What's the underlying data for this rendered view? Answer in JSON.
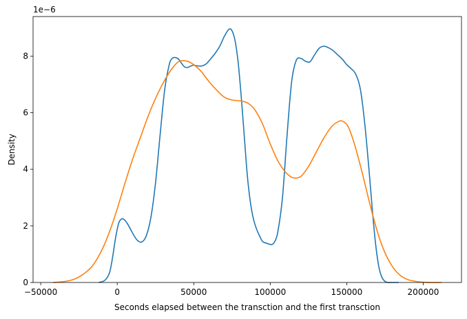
{
  "chart_data": {
    "type": "line",
    "title": "",
    "xlabel": "Seconds elapsed between the transction and the first transction",
    "ylabel": "Density",
    "y_offset_label": "1e−6",
    "xlim": [
      -55000,
      225000
    ],
    "ylim": [
      0,
      9.4
    ],
    "y_unit_scale": "1e-6",
    "x_ticks": [
      -50000,
      0,
      50000,
      100000,
      150000,
      200000
    ],
    "x_tick_labels": [
      "−50000",
      "0",
      "50000",
      "100000",
      "150000",
      "200000"
    ],
    "y_ticks": [
      0,
      2,
      4,
      6,
      8
    ],
    "y_tick_labels": [
      "0",
      "2",
      "4",
      "6",
      "8"
    ],
    "grid": false,
    "legend": "none",
    "series": [
      {
        "color": "#1f77b4",
        "x": [
          -12000,
          -8000,
          -5000,
          -3000,
          -1000,
          1000,
          3000,
          5000,
          7000,
          10000,
          13000,
          16000,
          19000,
          22000,
          25000,
          28000,
          31000,
          34000,
          36000,
          38000,
          40000,
          42000,
          44000,
          46000,
          48000,
          50000,
          52000,
          55000,
          58000,
          61000,
          64000,
          67000,
          70000,
          73000,
          75000,
          77000,
          79000,
          81000,
          83000,
          85000,
          87000,
          89000,
          91000,
          93000,
          95000,
          98000,
          101000,
          103000,
          105000,
          108000,
          111000,
          114000,
          117000,
          120000,
          123000,
          126000,
          129000,
          132000,
          135000,
          138000,
          141000,
          144000,
          147000,
          150000,
          153000,
          156000,
          159000,
          162000,
          165000,
          167000,
          169000,
          171000,
          173000,
          175000,
          177000,
          179000,
          181000,
          184000
        ],
        "y": [
          0.0,
          0.08,
          0.35,
          0.9,
          1.6,
          2.1,
          2.25,
          2.2,
          2.05,
          1.75,
          1.5,
          1.43,
          1.65,
          2.3,
          3.5,
          5.2,
          6.8,
          7.7,
          7.92,
          7.95,
          7.9,
          7.75,
          7.62,
          7.6,
          7.65,
          7.68,
          7.66,
          7.65,
          7.72,
          7.9,
          8.1,
          8.35,
          8.7,
          8.95,
          8.9,
          8.55,
          7.8,
          6.6,
          5.2,
          3.8,
          2.85,
          2.25,
          1.9,
          1.65,
          1.45,
          1.38,
          1.34,
          1.45,
          1.8,
          3.0,
          5.2,
          7.1,
          7.85,
          7.92,
          7.82,
          7.8,
          8.05,
          8.28,
          8.35,
          8.3,
          8.2,
          8.05,
          7.9,
          7.7,
          7.55,
          7.35,
          6.8,
          5.5,
          3.7,
          2.4,
          1.3,
          0.55,
          0.18,
          0.04,
          0.0,
          0.0,
          0.0,
          0.0
        ]
      },
      {
        "color": "#ff7f0e",
        "x": [
          -42000,
          -35000,
          -28000,
          -22000,
          -16000,
          -10000,
          -5000,
          0,
          5000,
          10000,
          15000,
          20000,
          25000,
          30000,
          35000,
          40000,
          45000,
          50000,
          55000,
          60000,
          65000,
          70000,
          75000,
          80000,
          85000,
          90000,
          95000,
          100000,
          105000,
          110000,
          115000,
          120000,
          125000,
          130000,
          135000,
          140000,
          145000,
          148000,
          151000,
          155000,
          160000,
          165000,
          170000,
          175000,
          180000,
          185000,
          190000,
          195000,
          200000,
          206000,
          212000
        ],
        "y": [
          0.0,
          0.03,
          0.12,
          0.3,
          0.6,
          1.15,
          1.8,
          2.6,
          3.5,
          4.35,
          5.1,
          5.85,
          6.5,
          7.05,
          7.5,
          7.8,
          7.83,
          7.7,
          7.45,
          7.1,
          6.8,
          6.55,
          6.45,
          6.42,
          6.35,
          6.1,
          5.6,
          4.9,
          4.3,
          3.9,
          3.7,
          3.75,
          4.1,
          4.6,
          5.1,
          5.5,
          5.7,
          5.68,
          5.5,
          4.9,
          3.9,
          2.8,
          1.8,
          1.05,
          0.55,
          0.25,
          0.1,
          0.04,
          0.01,
          0.0,
          0.0
        ]
      }
    ]
  }
}
